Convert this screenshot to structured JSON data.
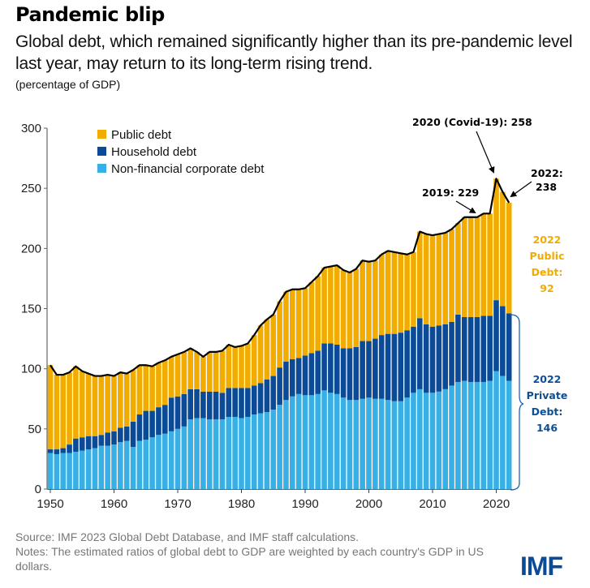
{
  "header": {
    "title": "Pandemic blip",
    "subtitle": "Global debt, which remained significantly higher than its pre-pandemic level last year, may return to its long-term rising trend.",
    "unit": "(percentage of GDP)"
  },
  "footer": {
    "source": "Source: IMF 2023 Global Debt Database, and IMF staff calculations.",
    "notes": "Notes: The estimated ratios of global debt to GDP are weighted by each country's GDP in US dollars.",
    "logo": "IMF"
  },
  "colors": {
    "public": "#f2ac00",
    "household": "#0a4a96",
    "corporate": "#38b0e6",
    "line": "#000000",
    "private_label": "#0c4f96"
  },
  "chart_data": {
    "type": "bar",
    "stacked": true,
    "title": "Pandemic blip",
    "xlabel": "",
    "ylabel": "percentage of GDP",
    "ylim": [
      0,
      300
    ],
    "yticks": [
      0,
      50,
      100,
      150,
      200,
      250,
      300
    ],
    "xticks": [
      1950,
      1960,
      1970,
      1980,
      1990,
      2000,
      2010,
      2020
    ],
    "legend_position": "top-left",
    "legend": [
      "Public debt",
      "Household debt",
      "Non-financial corporate debt"
    ],
    "x": [
      1950,
      1951,
      1952,
      1953,
      1954,
      1955,
      1956,
      1957,
      1958,
      1959,
      1960,
      1961,
      1962,
      1963,
      1964,
      1965,
      1966,
      1967,
      1968,
      1969,
      1970,
      1971,
      1972,
      1973,
      1974,
      1975,
      1976,
      1977,
      1978,
      1979,
      1980,
      1981,
      1982,
      1983,
      1984,
      1985,
      1986,
      1987,
      1988,
      1989,
      1990,
      1991,
      1992,
      1993,
      1994,
      1995,
      1996,
      1997,
      1998,
      1999,
      2000,
      2001,
      2002,
      2003,
      2004,
      2005,
      2006,
      2007,
      2008,
      2009,
      2010,
      2011,
      2012,
      2013,
      2014,
      2015,
      2016,
      2017,
      2018,
      2019,
      2020,
      2021,
      2022
    ],
    "series": [
      {
        "name": "Non-financial corporate debt",
        "values": [
          30,
          29,
          30,
          30,
          31,
          32,
          33,
          34,
          36,
          36,
          37,
          39,
          40,
          35,
          40,
          41,
          43,
          45,
          46,
          48,
          50,
          52,
          58,
          59,
          59,
          58,
          58,
          58,
          60,
          60,
          59,
          60,
          62,
          63,
          64,
          66,
          70,
          74,
          77,
          79,
          78,
          78,
          79,
          82,
          80,
          79,
          76,
          74,
          74,
          75,
          76,
          75,
          75,
          74,
          73,
          73,
          76,
          80,
          83,
          80,
          80,
          81,
          83,
          86,
          89,
          90,
          89,
          89,
          89,
          90,
          98,
          94,
          90
        ]
      },
      {
        "name": "Household debt",
        "values": [
          3,
          4,
          4,
          7,
          11,
          11,
          11,
          10,
          9,
          11,
          11,
          12,
          12,
          21,
          22,
          24,
          22,
          23,
          24,
          28,
          27,
          27,
          25,
          24,
          22,
          23,
          23,
          22,
          24,
          24,
          25,
          24,
          24,
          25,
          27,
          28,
          31,
          32,
          31,
          30,
          33,
          35,
          36,
          39,
          41,
          41,
          41,
          43,
          44,
          48,
          47,
          50,
          53,
          55,
          56,
          57,
          56,
          55,
          59,
          57,
          55,
          55,
          54,
          53,
          56,
          53,
          54,
          54,
          55,
          54,
          59,
          58,
          56
        ]
      },
      {
        "name": "Public debt",
        "values": [
          70,
          62,
          61,
          60,
          60,
          55,
          52,
          50,
          49,
          48,
          46,
          46,
          44,
          43,
          41,
          38,
          37,
          37,
          37,
          34,
          35,
          35,
          34,
          31,
          29,
          33,
          33,
          35,
          36,
          34,
          35,
          37,
          42,
          48,
          50,
          51,
          55,
          58,
          58,
          57,
          56,
          59,
          62,
          63,
          64,
          66,
          65,
          63,
          65,
          67,
          66,
          65,
          67,
          69,
          68,
          66,
          63,
          62,
          72,
          75,
          76,
          76,
          76,
          77,
          76,
          83,
          83,
          83,
          85,
          85,
          101,
          95,
          92
        ]
      }
    ],
    "totals": [
      103,
      95,
      95,
      97,
      102,
      98,
      96,
      94,
      94,
      95,
      94,
      97,
      96,
      99,
      103,
      103,
      102,
      105,
      107,
      110,
      112,
      114,
      117,
      114,
      110,
      114,
      114,
      115,
      120,
      118,
      119,
      121,
      128,
      136,
      141,
      145,
      156,
      164,
      166,
      166,
      167,
      172,
      177,
      184,
      185,
      186,
      182,
      180,
      183,
      190,
      189,
      190,
      195,
      198,
      197,
      196,
      195,
      197,
      214,
      212,
      211,
      212,
      213,
      216,
      221,
      226,
      226,
      226,
      229,
      229,
      258,
      247,
      238
    ],
    "annotations": [
      {
        "year": 2019,
        "value": 229,
        "text": "2019: 229"
      },
      {
        "year": 2020,
        "value": 258,
        "text": "2020 (Covid-19): 258"
      },
      {
        "year": 2022,
        "value": 238,
        "text_lines": [
          "2022:",
          "238"
        ]
      }
    ],
    "side_labels": {
      "public": {
        "lines": [
          "2022",
          "Public",
          "Debt:",
          "92"
        ],
        "value": 92
      },
      "private": {
        "lines": [
          "2022",
          "Private",
          "Debt:",
          "146"
        ],
        "value": 146
      }
    }
  }
}
